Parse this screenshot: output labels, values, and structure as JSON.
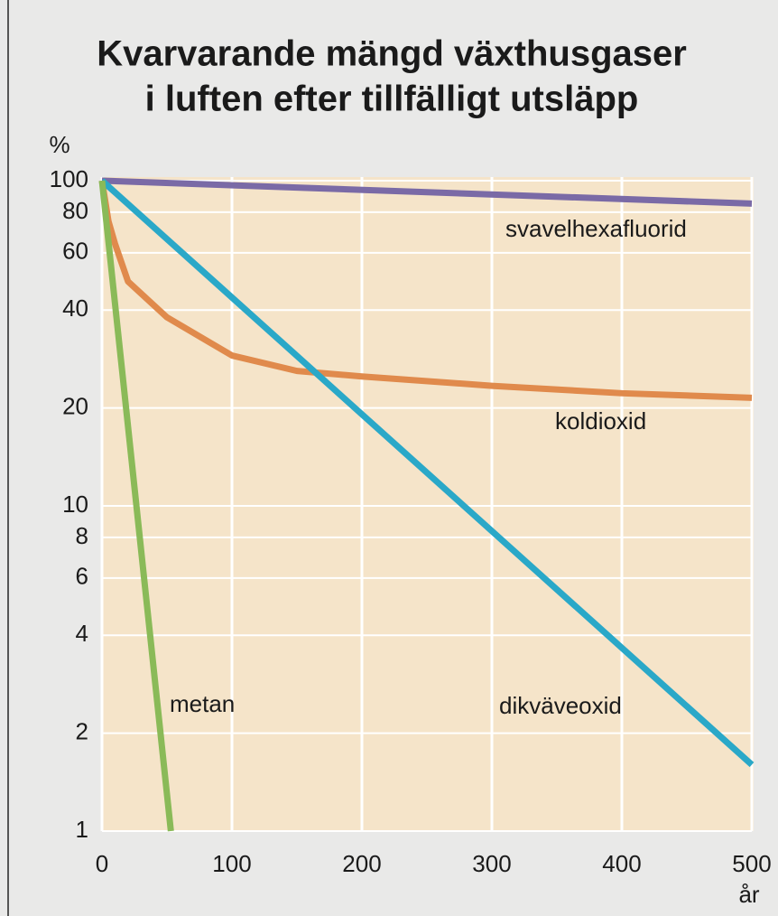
{
  "chart_data": {
    "type": "line",
    "title": [
      "Kvarvarande mängd växthusgaser",
      "i luften efter tillfälligt utsläpp"
    ],
    "ylabel": "%",
    "xlabel": "år",
    "yscale": "log",
    "grid": true,
    "legend": "inline",
    "xlim": [
      0,
      500
    ],
    "xticks": [
      0,
      100,
      200,
      300,
      400,
      500
    ],
    "ylim": [
      1,
      100
    ],
    "yticks": [
      1,
      2,
      4,
      6,
      8,
      10,
      20,
      40,
      60,
      80,
      100
    ],
    "series": [
      {
        "name": "svavelhexafluorid",
        "color": "#7a6aa6",
        "x": [
          0,
          500
        ],
        "values": [
          100,
          85
        ]
      },
      {
        "name": "koldioxid",
        "color": "#e08a4c",
        "x": [
          0,
          5,
          10,
          20,
          50,
          100,
          150,
          200,
          300,
          400,
          500
        ],
        "values": [
          100,
          75,
          64,
          49,
          38,
          29,
          26,
          25,
          23.4,
          22.2,
          21.5
        ]
      },
      {
        "name": "dikväveoxid",
        "color": "#2aa8c8",
        "x": [
          0,
          500
        ],
        "values": [
          100,
          1.6
        ]
      },
      {
        "name": "metan",
        "color": "#8aba58",
        "x": [
          0,
          53
        ],
        "values": [
          100,
          1
        ]
      }
    ]
  }
}
